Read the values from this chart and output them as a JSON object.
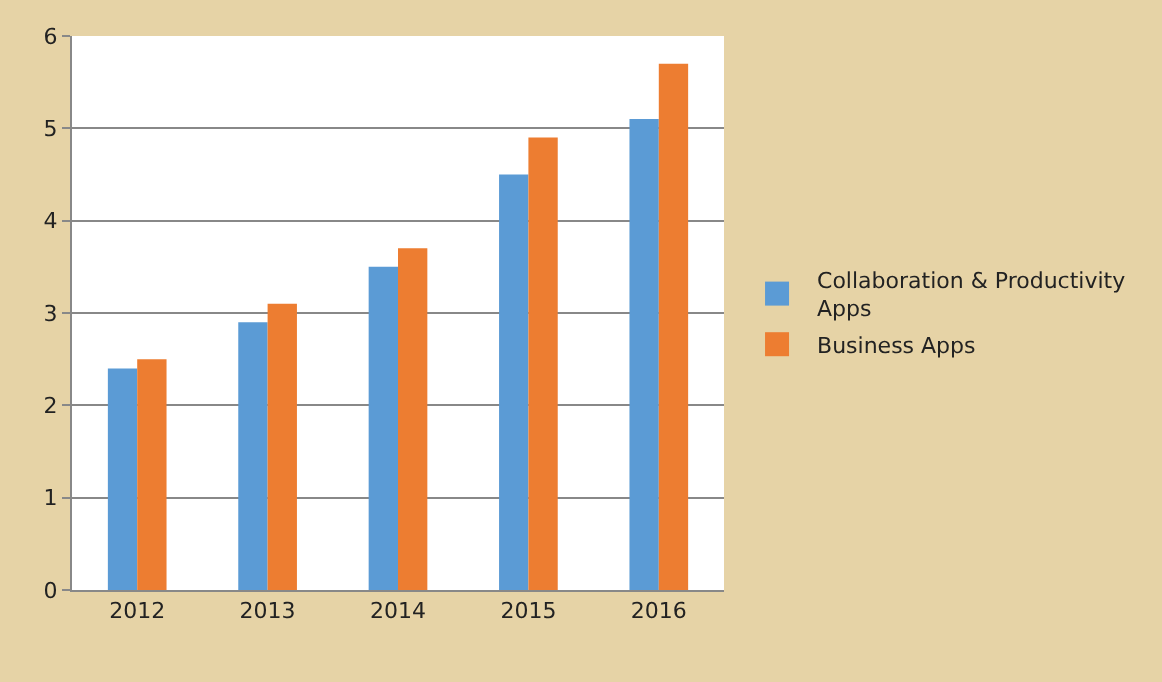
{
  "chart_data": {
    "type": "bar",
    "categories": [
      "2012",
      "2013",
      "2014",
      "2015",
      "2016"
    ],
    "series": [
      {
        "name": "Collaboration & Productivity Apps",
        "color": "#5b9bd5",
        "values": [
          2.4,
          2.9,
          3.5,
          4.5,
          5.1
        ]
      },
      {
        "name": "Business Apps",
        "color": "#ed7d31",
        "values": [
          2.5,
          3.1,
          3.7,
          4.9,
          5.7
        ]
      }
    ],
    "ylim": [
      0,
      6
    ],
    "yticks": [
      0,
      1,
      2,
      3,
      4,
      5,
      6
    ],
    "grid": "y",
    "legend": "right"
  }
}
